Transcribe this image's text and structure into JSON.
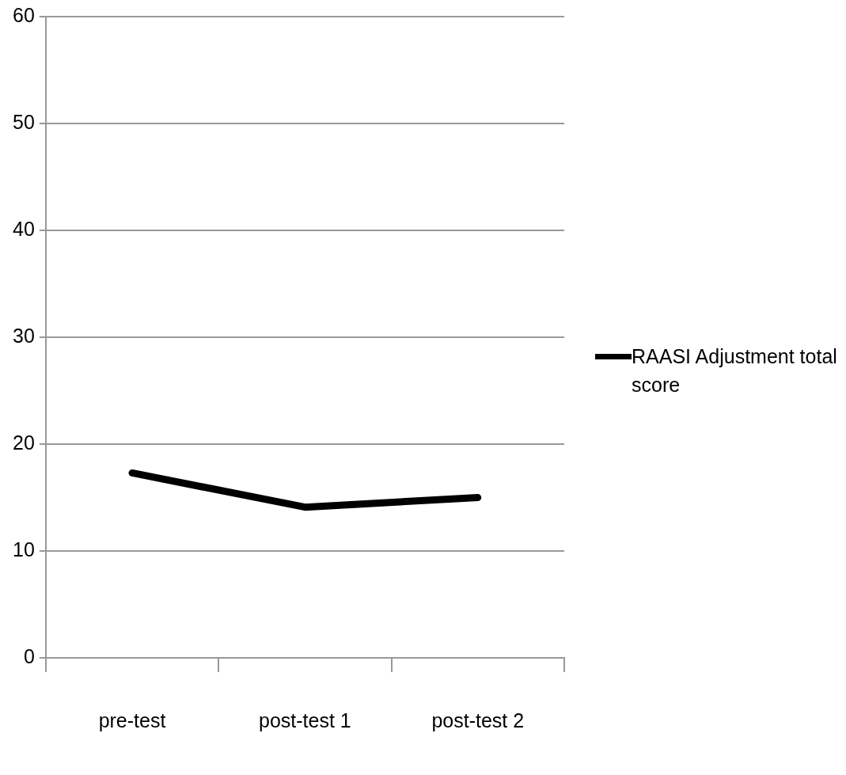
{
  "chart_data": {
    "type": "line",
    "categories": [
      "pre-test",
      "post-test 1",
      "post-test 2"
    ],
    "series": [
      {
        "name": "RAASI Adjustment total score",
        "color": "#000000",
        "values": [
          17.3,
          14.1,
          15.0
        ]
      }
    ],
    "ylim": [
      0,
      60
    ],
    "yticks": [
      0,
      10,
      20,
      30,
      40,
      50,
      60
    ],
    "grid": "y",
    "legend": "right",
    "marker": "none",
    "line_style": "solid"
  }
}
